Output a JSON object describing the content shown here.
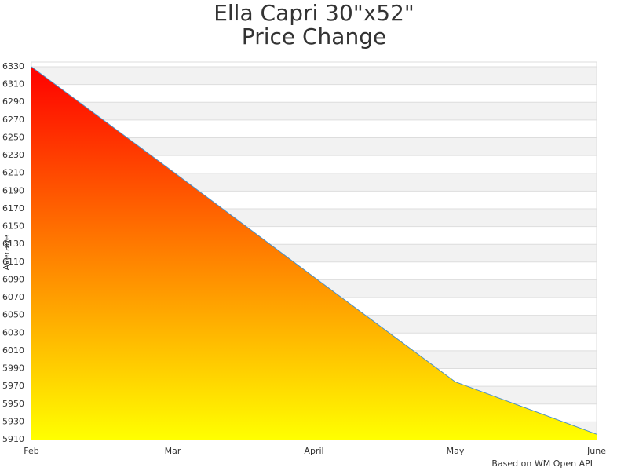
{
  "chart_data": {
    "type": "area",
    "title": "Ella Capri 30\"x52\"",
    "subtitle": "Price Change",
    "y_label": "Average",
    "footer": "Based on WM Open API",
    "categories": [
      "Feb",
      "Mar",
      "April",
      "May",
      "June"
    ],
    "values": [
      6330,
      6212,
      6093,
      5975,
      5916
    ],
    "color": "#4a90c8",
    "gradient": [
      "#ff0000",
      "#ffff00"
    ],
    "ylim": [
      5910,
      6330
    ],
    "yticks": [
      5910,
      5930,
      5950,
      5970,
      5990,
      6010,
      6030,
      6050,
      6070,
      6090,
      6110,
      6130,
      6150,
      6170,
      6190,
      6210,
      6230,
      6250,
      6270,
      6290,
      6310,
      6330
    ],
    "grid": true
  }
}
